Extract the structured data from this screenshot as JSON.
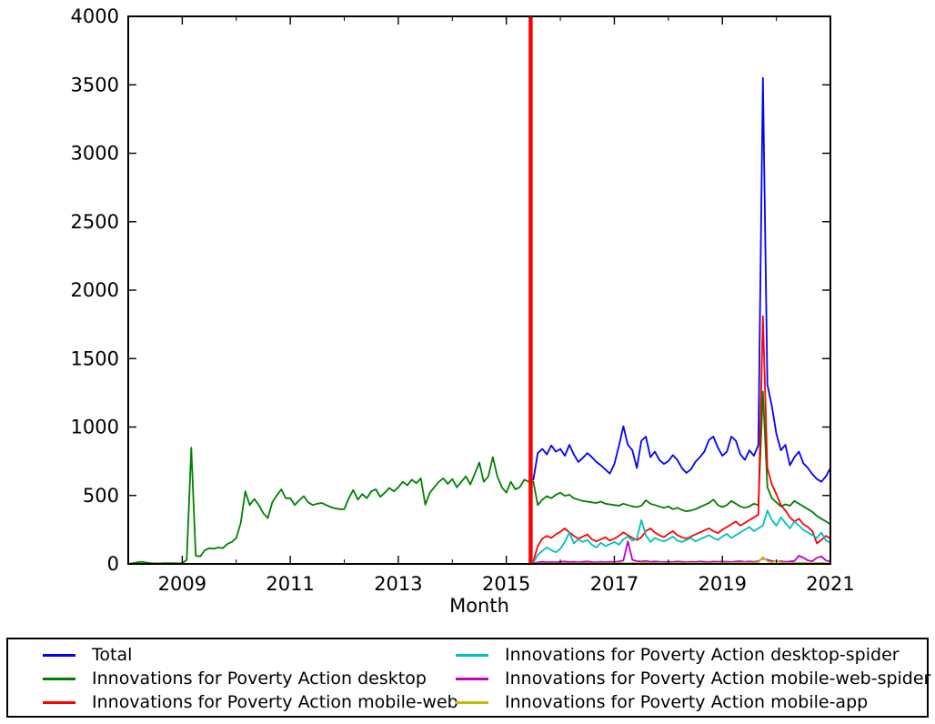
{
  "chart_data": {
    "type": "line",
    "title": "",
    "xlabel": "Month",
    "ylabel": "",
    "xlim": [
      2008,
      2021
    ],
    "ylim": [
      0,
      4000
    ],
    "x_major_ticks": [
      2009,
      2011,
      2013,
      2015,
      2017,
      2019,
      2021
    ],
    "x_minor_tick_years": [
      2008,
      2010,
      2012,
      2014,
      2016,
      2018,
      2020
    ],
    "y_ticks": [
      0,
      500,
      1000,
      1500,
      2000,
      2500,
      3000,
      3500,
      4000
    ],
    "grid": false,
    "legend_position": "bottom",
    "frame_color": "#000000",
    "months_start": "2008-01",
    "months_per_point": 1,
    "points_total": 157,
    "event_line": {
      "x_year": 2015.45,
      "color": "#ff0000"
    },
    "series": [
      {
        "name": "Total",
        "color": "#0000ff",
        "start_index": 90,
        "baseline_before_start": null,
        "values": [
          615,
          810,
          840,
          800,
          865,
          820,
          840,
          790,
          870,
          800,
          745,
          775,
          810,
          780,
          745,
          720,
          690,
          660,
          730,
          860,
          1005,
          870,
          830,
          700,
          900,
          930,
          780,
          820,
          760,
          730,
          750,
          795,
          760,
          700,
          665,
          690,
          745,
          780,
          820,
          905,
          930,
          850,
          790,
          820,
          930,
          900,
          800,
          760,
          830,
          790,
          870,
          3550,
          1310,
          1150,
          950,
          830,
          870,
          720,
          780,
          820,
          735,
          700,
          655,
          620,
          600,
          640,
          700
        ]
      },
      {
        "name": "Innovations for Poverty Action desktop",
        "color": "#008000",
        "start_index": 0,
        "baseline_before_start": null,
        "values": [
          0,
          5,
          12,
          15,
          10,
          6,
          4,
          4,
          5,
          6,
          5,
          4,
          6,
          30,
          850,
          60,
          55,
          100,
          115,
          110,
          120,
          115,
          145,
          160,
          190,
          300,
          530,
          430,
          475,
          430,
          370,
          335,
          450,
          500,
          545,
          480,
          480,
          430,
          465,
          495,
          450,
          430,
          440,
          445,
          430,
          415,
          405,
          400,
          400,
          480,
          540,
          470,
          510,
          480,
          530,
          545,
          490,
          520,
          555,
          530,
          560,
          600,
          575,
          615,
          590,
          625,
          432,
          520,
          560,
          600,
          625,
          585,
          620,
          560,
          600,
          640,
          580,
          660,
          740,
          600,
          640,
          780,
          640,
          560,
          520,
          600,
          545,
          560,
          615,
          600,
          600,
          430,
          470,
          495,
          480,
          505,
          520,
          498,
          505,
          480,
          470,
          460,
          455,
          450,
          445,
          455,
          440,
          435,
          430,
          425,
          440,
          430,
          420,
          415,
          425,
          465,
          440,
          430,
          420,
          410,
          420,
          400,
          410,
          395,
          385,
          390,
          400,
          415,
          430,
          445,
          470,
          430,
          415,
          430,
          460,
          440,
          420,
          410,
          420,
          440,
          430,
          1260,
          560,
          480,
          450,
          420,
          435,
          425,
          460,
          440,
          420,
          400,
          380,
          350,
          330,
          310,
          290
        ]
      },
      {
        "name": "Innovations for Poverty Action mobile-web",
        "color": "#ff0000",
        "start_index": 90,
        "baseline_before_start": 0,
        "values": [
          20,
          130,
          185,
          205,
          190,
          215,
          235,
          260,
          230,
          205,
          185,
          200,
          215,
          180,
          165,
          180,
          195,
          170,
          185,
          205,
          230,
          210,
          190,
          175,
          195,
          240,
          260,
          230,
          210,
          195,
          220,
          240,
          210,
          195,
          185,
          200,
          215,
          230,
          245,
          260,
          240,
          225,
          250,
          270,
          290,
          310,
          280,
          300,
          320,
          340,
          360,
          1810,
          700,
          580,
          510,
          430,
          390,
          340,
          310,
          330,
          290,
          270,
          240,
          150,
          175,
          205,
          185
        ]
      },
      {
        "name": "Innovations for Poverty Action desktop-spider",
        "color": "#00bfbf",
        "start_index": 90,
        "baseline_before_start": 0,
        "values": [
          10,
          65,
          95,
          120,
          100,
          85,
          110,
          160,
          230,
          150,
          180,
          160,
          175,
          140,
          120,
          155,
          130,
          145,
          160,
          140,
          180,
          200,
          170,
          185,
          320,
          210,
          160,
          190,
          175,
          165,
          180,
          200,
          170,
          160,
          175,
          190,
          165,
          180,
          195,
          210,
          190,
          175,
          200,
          220,
          190,
          210,
          230,
          250,
          270,
          240,
          260,
          280,
          390,
          320,
          280,
          340,
          300,
          260,
          310,
          280,
          250,
          230,
          210,
          190,
          230,
          170,
          155
        ]
      },
      {
        "name": "Innovations for Poverty Action mobile-web-spider",
        "color": "#bf00bf",
        "start_index": 90,
        "baseline_before_start": 0,
        "values": [
          5,
          12,
          15,
          12,
          14,
          12,
          15,
          18,
          14,
          16,
          12,
          15,
          18,
          14,
          12,
          15,
          13,
          16,
          14,
          18,
          25,
          165,
          30,
          20,
          18,
          22,
          16,
          18,
          15,
          14,
          16,
          14,
          18,
          15,
          12,
          16,
          14,
          18,
          15,
          13,
          17,
          15,
          18,
          16,
          14,
          18,
          20,
          16,
          18,
          15,
          20,
          40,
          30,
          22,
          18,
          20,
          16,
          18,
          22,
          60,
          45,
          25,
          20,
          45,
          55,
          25,
          18
        ]
      },
      {
        "name": "Innovations for Poverty Action mobile-app",
        "color": "#bfbf00",
        "start_index": 90,
        "baseline_before_start": 0,
        "values": [
          2,
          3,
          4,
          3,
          4,
          3,
          4,
          5,
          3,
          4,
          6,
          4,
          5,
          3,
          4,
          5,
          4,
          6,
          5,
          8,
          6,
          5,
          7,
          6,
          8,
          10,
          6,
          5,
          7,
          6,
          5,
          6,
          8,
          6,
          5,
          7,
          6,
          8,
          6,
          5,
          6,
          7,
          8,
          6,
          7,
          9,
          8,
          10,
          8,
          9,
          12,
          50,
          20,
          10,
          25,
          10,
          8,
          6,
          9,
          8,
          10,
          7,
          6,
          8,
          7,
          6,
          5
        ]
      }
    ]
  }
}
